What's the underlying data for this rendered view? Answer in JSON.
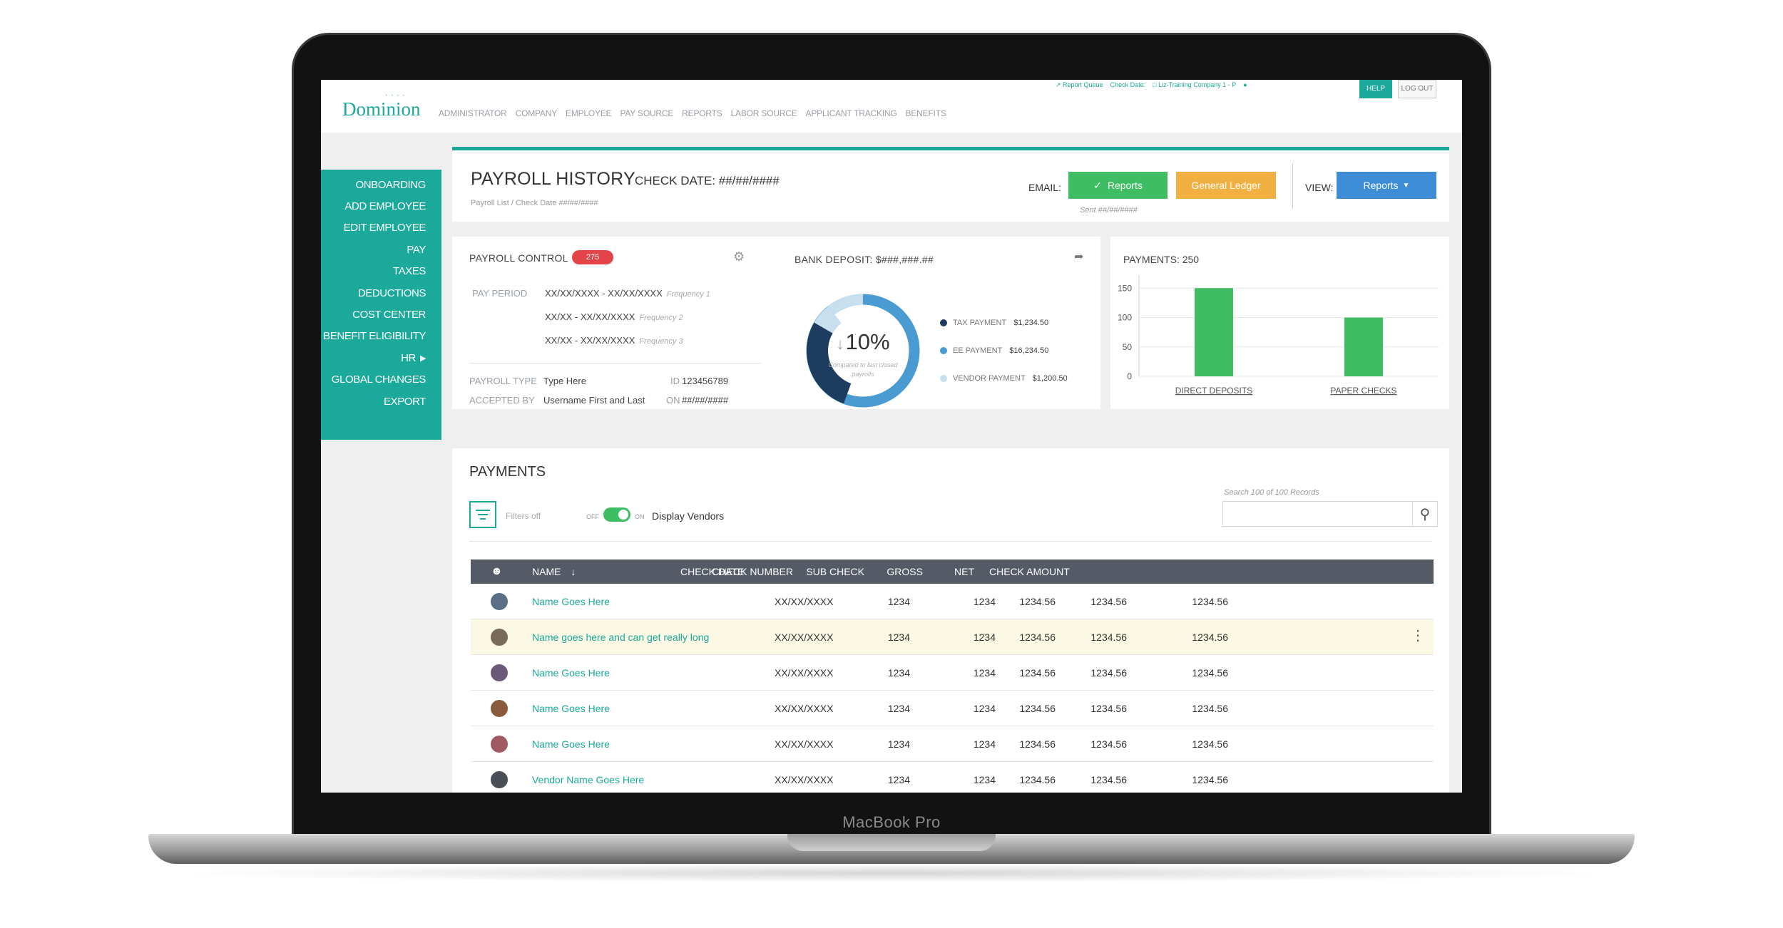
{
  "device": {
    "label": "MacBook Pro"
  },
  "topbar": {
    "logo": "Dominion",
    "nav": [
      "ADMINISTRATOR",
      "COMPANY",
      "EMPLOYEE",
      "PAY SOURCE",
      "REPORTS",
      "LABOR SOURCE",
      "APPLICANT TRACKING",
      "BENEFITS"
    ],
    "utility": {
      "report_queue": "Report Queue",
      "check_date": "Check Date:",
      "company": "Liz-Training Company 1 - P"
    },
    "help": "HELP",
    "logout": "LOG OUT"
  },
  "sidebar": {
    "items": [
      {
        "label": "ONBOARDING"
      },
      {
        "label": "ADD EMPLOYEE"
      },
      {
        "label": "EDIT EMPLOYEE"
      },
      {
        "label": "PAY"
      },
      {
        "label": "TAXES"
      },
      {
        "label": "DEDUCTIONS"
      },
      {
        "label": "COST CENTER"
      },
      {
        "label": "BENEFIT ELIGIBILITY"
      },
      {
        "label": "HR"
      },
      {
        "label": "GLOBAL CHANGES"
      },
      {
        "label": "EXPORT"
      }
    ]
  },
  "header": {
    "title": "PAYROLL HISTORY",
    "check_date": "CHECK DATE: ##/##/####",
    "breadcrumb": "Payroll List / Check Date ##/##/####",
    "email_label": "EMAIL:",
    "reports_btn": "Reports",
    "ledger_btn": "General Ledger",
    "sent": "Sent ##/##/####",
    "view_label": "VIEW:",
    "view_btn": "Reports"
  },
  "payroll_control": {
    "title": "PAYROLL CONTROL",
    "badge": "275",
    "pay_period_label": "PAY PERIOD",
    "periods": [
      {
        "range": "XX/XX/XXXX - XX/XX/XXXX",
        "freq": "Frequency 1"
      },
      {
        "range": "XX/XX - XX/XX/XXXX",
        "freq": "Frequency 2"
      },
      {
        "range": "XX/XX - XX/XX/XXXX",
        "freq": "Frequency 3"
      }
    ],
    "payroll_type_label": "PAYROLL TYPE",
    "payroll_type": "Type Here",
    "id_label": "ID",
    "id": "123456789",
    "accepted_by_label": "ACCEPTED BY",
    "accepted_by": "Username First and Last",
    "on_label": "ON",
    "on": "##/##/####"
  },
  "bank_deposit": {
    "title": "BANK DEPOSIT: $###,###.##",
    "percent": "10%",
    "note": "Compared to last closed payrolls",
    "colors": {
      "tax": "#1d3c5e",
      "ee": "#4a9bd1",
      "vendor": "#c8dff0"
    },
    "legend": [
      {
        "label": "TAX PAYMENT",
        "value": "$1,234.50"
      },
      {
        "label": "EE PAYMENT",
        "value": "$16,234.50"
      },
      {
        "label": "VENDOR PAYMENT",
        "value": "$1,200.50"
      }
    ]
  },
  "payments_chart": {
    "title": "PAYMENTS: 250"
  },
  "chart_data": {
    "type": "bar",
    "categories": [
      "DIRECT DEPOSITS",
      "PAPER CHECKS"
    ],
    "values": [
      150,
      100
    ],
    "title": "PAYMENTS: 250",
    "yticks": [
      "150",
      "100",
      "50",
      "0"
    ],
    "ylim": [
      0,
      160
    ],
    "color": "#3ebd63",
    "grid": true
  },
  "payments": {
    "title": "PAYMENTS",
    "filters": "Filters off",
    "toggle_off": "OFF",
    "toggle_on": "ON",
    "display_vendors": "Display Vendors",
    "search_placeholder": "Search 100 of 100 Records",
    "columns": {
      "name": "NAME",
      "check_date": "CHECK DATE",
      "check_number": "CHECK NUMBER",
      "sub_check": "SUB CHECK",
      "gross": "GROSS",
      "net": "NET",
      "check_amount": "CHECK AMOUNT"
    },
    "rows": [
      {
        "name": "Name Goes Here",
        "check_date": "XX/XX/XXXX",
        "check_number": "1234",
        "sub_check": "1234",
        "gross": "1234.56",
        "net": "1234.56",
        "check_amount": "1234.56"
      },
      {
        "name": "Name goes here and can get really long",
        "check_date": "XX/XX/XXXX",
        "check_number": "1234",
        "sub_check": "1234",
        "gross": "1234.56",
        "net": "1234.56",
        "check_amount": "1234.56"
      },
      {
        "name": "Name Goes Here",
        "check_date": "XX/XX/XXXX",
        "check_number": "1234",
        "sub_check": "1234",
        "gross": "1234.56",
        "net": "1234.56",
        "check_amount": "1234.56"
      },
      {
        "name": "Name Goes Here",
        "check_date": "XX/XX/XXXX",
        "check_number": "1234",
        "sub_check": "1234",
        "gross": "1234.56",
        "net": "1234.56",
        "check_amount": "1234.56"
      },
      {
        "name": "Name Goes Here",
        "check_date": "XX/XX/XXXX",
        "check_number": "1234",
        "sub_check": "1234",
        "gross": "1234.56",
        "net": "1234.56",
        "check_amount": "1234.56"
      },
      {
        "name": "Vendor Name Goes Here",
        "check_date": "XX/XX/XXXX",
        "check_number": "1234",
        "sub_check": "1234",
        "gross": "1234.56",
        "net": "1234.56",
        "check_amount": "1234.56"
      }
    ]
  }
}
